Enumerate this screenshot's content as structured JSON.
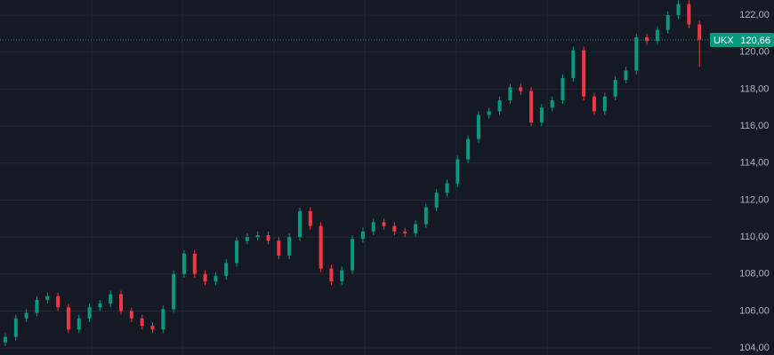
{
  "chart_data": {
    "type": "candlestick",
    "ylim": [
      103.62,
      122.82
    ],
    "yticks": [
      {
        "value": 104,
        "label": "104,00"
      },
      {
        "value": 106,
        "label": "106,00"
      },
      {
        "value": 108,
        "label": "108,00"
      },
      {
        "value": 110,
        "label": "110,00"
      },
      {
        "value": 112,
        "label": "112,00"
      },
      {
        "value": 114,
        "label": "114,00"
      },
      {
        "value": 116,
        "label": "116,00"
      },
      {
        "value": 118,
        "label": "118,00"
      },
      {
        "value": 120,
        "label": "120,00"
      },
      {
        "value": 122,
        "label": "122,00"
      }
    ],
    "grid": true,
    "up_color": "#089981",
    "down_color": "#f23645",
    "open": [
      104.3,
      104.6,
      105.6,
      105.9,
      106.6,
      106.8,
      106.2,
      105.0,
      105.6,
      106.2,
      106.4,
      106.9,
      106.0,
      105.6,
      105.2,
      105.0,
      106.1,
      108.0,
      109.1,
      108.0,
      107.6,
      107.9,
      108.6,
      109.8,
      110.0,
      110.1,
      109.8,
      109.0,
      110.0,
      111.4,
      110.6,
      108.3,
      107.6,
      108.2,
      109.9,
      110.3,
      110.8,
      110.6,
      110.3,
      110.2,
      110.7,
      111.6,
      112.4,
      112.9,
      114.2,
      115.3,
      116.6,
      116.8,
      117.4,
      118.1,
      117.9,
      116.2,
      117.0,
      117.4,
      118.6,
      120.1,
      117.6,
      116.8,
      117.6,
      118.5,
      119.0,
      120.8,
      120.6,
      121.2,
      122.0,
      122.6,
      121.5
    ],
    "high": [
      104.8,
      105.8,
      106.1,
      106.8,
      107.0,
      107.0,
      106.4,
      105.8,
      106.4,
      106.6,
      107.1,
      107.1,
      106.2,
      105.8,
      105.4,
      106.3,
      108.2,
      109.3,
      109.3,
      108.2,
      108.1,
      108.8,
      110.0,
      110.2,
      110.3,
      110.3,
      110.0,
      110.2,
      111.6,
      111.6,
      110.8,
      108.5,
      108.4,
      110.1,
      110.5,
      111.0,
      111.0,
      110.8,
      110.5,
      110.9,
      111.8,
      112.6,
      113.1,
      114.4,
      115.5,
      116.8,
      117.0,
      117.6,
      118.3,
      118.3,
      118.1,
      117.2,
      117.6,
      118.8,
      120.3,
      120.3,
      117.8,
      117.8,
      118.7,
      119.2,
      121.0,
      121.0,
      121.4,
      122.2,
      122.8,
      122.8,
      121.7
    ],
    "low": [
      104.1,
      104.4,
      105.4,
      105.7,
      106.4,
      106.0,
      104.8,
      104.8,
      105.4,
      106.0,
      106.2,
      105.8,
      105.4,
      105.0,
      104.8,
      104.8,
      105.9,
      107.8,
      107.8,
      107.4,
      107.4,
      107.7,
      108.4,
      109.6,
      109.8,
      109.6,
      108.8,
      108.8,
      109.8,
      110.4,
      108.1,
      107.4,
      107.4,
      108.0,
      109.7,
      110.1,
      110.4,
      110.1,
      110.0,
      110.0,
      110.5,
      111.4,
      112.2,
      112.7,
      114.0,
      115.1,
      116.4,
      116.6,
      117.2,
      117.7,
      116.0,
      116.0,
      116.8,
      117.2,
      118.4,
      117.4,
      116.6,
      116.6,
      117.4,
      118.3,
      118.8,
      120.4,
      120.4,
      121.0,
      121.8,
      121.3,
      119.2
    ],
    "close": [
      104.6,
      105.6,
      105.9,
      106.6,
      106.8,
      106.2,
      105.0,
      105.6,
      106.2,
      106.4,
      106.9,
      106.0,
      105.6,
      105.2,
      105.0,
      106.1,
      108.0,
      109.1,
      108.0,
      107.6,
      107.9,
      108.6,
      109.8,
      110.0,
      110.1,
      109.8,
      109.0,
      110.0,
      111.4,
      110.6,
      108.3,
      107.6,
      108.2,
      109.9,
      110.3,
      110.8,
      110.6,
      110.3,
      110.2,
      110.7,
      111.6,
      112.4,
      112.9,
      114.2,
      115.3,
      116.6,
      116.8,
      117.4,
      118.1,
      117.9,
      116.2,
      117.0,
      117.4,
      118.6,
      120.1,
      117.6,
      116.8,
      117.6,
      118.5,
      119.0,
      120.8,
      120.6,
      121.2,
      122.0,
      122.6,
      121.5,
      120.66
    ],
    "price_line": {
      "name": "UKX",
      "value": 120.66,
      "value_label": "120,66",
      "color": "#089981"
    }
  }
}
